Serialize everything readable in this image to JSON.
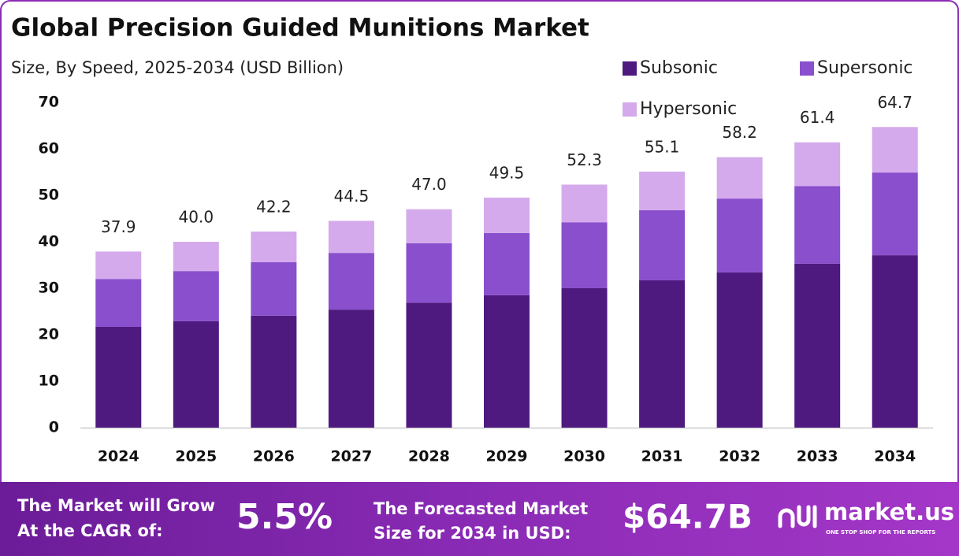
{
  "chart_data": {
    "type": "stacked-bar",
    "title": "Global Precision Guided Munitions Market",
    "subtitle": "Size, By Speed, 2025-2034 (USD Billion)",
    "categories": [
      "2024",
      "2025",
      "2026",
      "2027",
      "2028",
      "2029",
      "2030",
      "2031",
      "2032",
      "2033",
      "2034"
    ],
    "series": [
      {
        "name": "Subsonic",
        "color": "#4e1a80",
        "values": [
          21.7,
          22.9,
          24.1,
          25.4,
          26.9,
          28.5,
          30.0,
          31.7,
          33.4,
          35.3,
          37.1
        ]
      },
      {
        "name": "Supersonic",
        "color": "#8a4fcd",
        "values": [
          10.3,
          10.8,
          11.5,
          12.2,
          12.8,
          13.4,
          14.2,
          15.1,
          15.9,
          16.7,
          17.8
        ]
      },
      {
        "name": "Hypersonic",
        "color": "#d4aaec",
        "values": [
          5.9,
          6.3,
          6.6,
          6.9,
          7.3,
          7.6,
          8.1,
          8.3,
          8.9,
          9.4,
          9.8
        ]
      }
    ],
    "totals": {
      "values": [
        37.9,
        40,
        42.2,
        44.5,
        47,
        49.5,
        52.3,
        55.1,
        58.2,
        61.4,
        64.7
      ],
      "value_labels": [
        "37.9",
        "40.0",
        "42.2",
        "44.5",
        "47.0",
        "49.5",
        "52.3",
        "55.1",
        "58.2",
        "61.4",
        "64.7"
      ]
    },
    "ylim": [
      0,
      70
    ],
    "yticks": [
      0,
      10,
      20,
      30,
      40,
      50,
      60,
      70
    ],
    "grid": false,
    "legend": "top-right"
  },
  "footer": {
    "cagr_text": [
      "The Market will Grow",
      "At the CAGR of:"
    ],
    "cagr_value": "5.5%",
    "forecast_text": [
      "The Forecasted Market",
      "Size for 2034 in USD:"
    ],
    "forecast_value": "$64.7B",
    "brand": "market.us",
    "tagline": "ONE STOP SHOP FOR THE REPORTS"
  }
}
